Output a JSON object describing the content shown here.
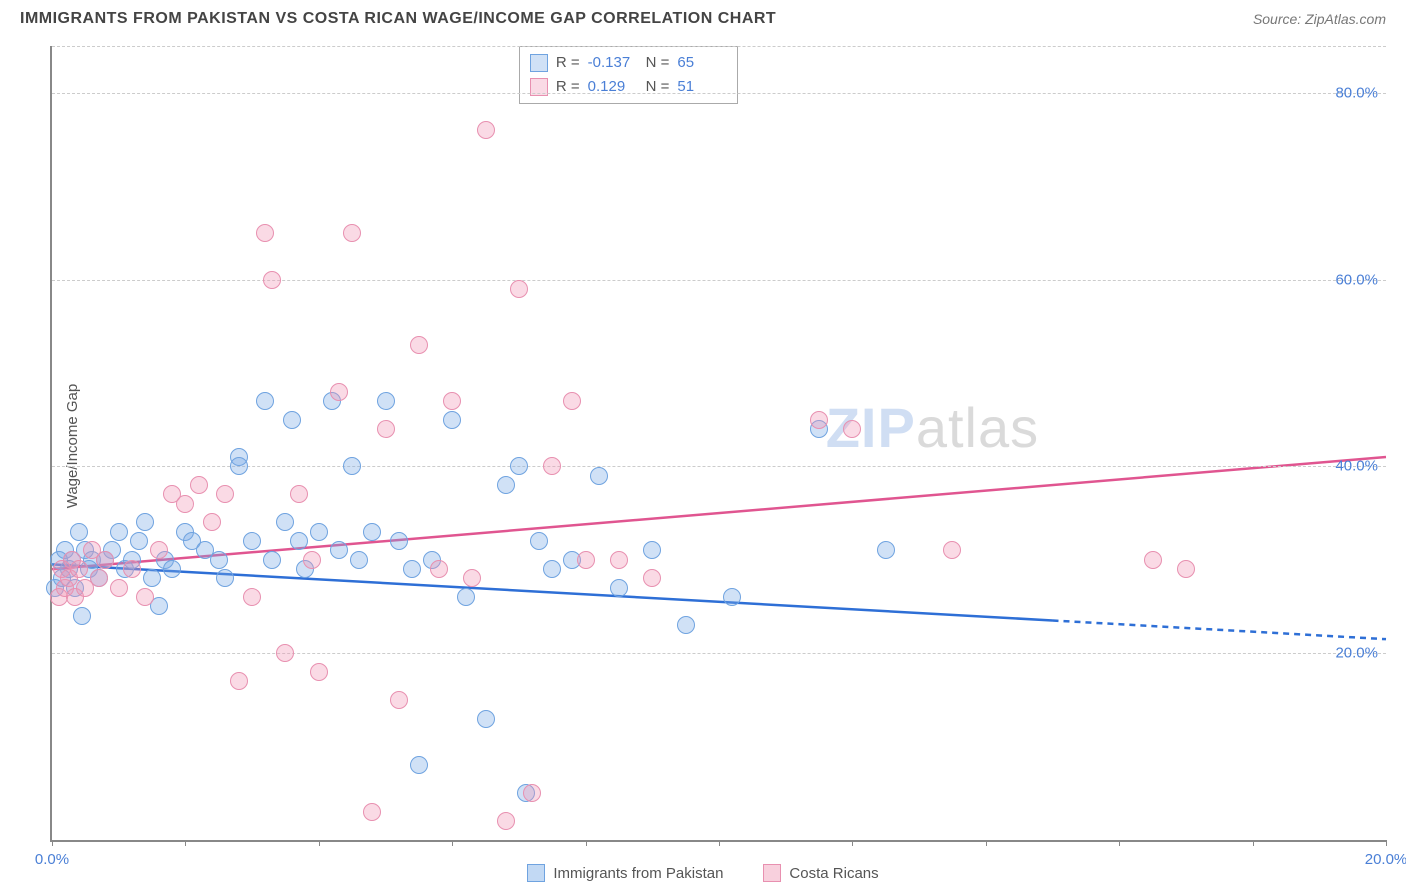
{
  "title": "IMMIGRANTS FROM PAKISTAN VS COSTA RICAN WAGE/INCOME GAP CORRELATION CHART",
  "source_label": "Source: ZipAtlas.com",
  "ylabel": "Wage/Income Gap",
  "watermark": {
    "part1": "ZIP",
    "part2": "atlas"
  },
  "chart": {
    "type": "scatter",
    "background_color": "#ffffff",
    "grid_color": "#cccccc",
    "axis_color": "#888888",
    "tick_label_color": "#4a7fd6",
    "xlim": [
      0,
      20
    ],
    "ylim": [
      0,
      85
    ],
    "xtick_positions": [
      0,
      2,
      4,
      6,
      8,
      10,
      12,
      14,
      16,
      18,
      20
    ],
    "xtick_labels": {
      "0": "0.0%",
      "20": "20.0%"
    },
    "ytick_positions": [
      20,
      40,
      60,
      80
    ],
    "ytick_labels": {
      "20": "20.0%",
      "40": "40.0%",
      "60": "60.0%",
      "80": "80.0%"
    },
    "marker_radius": 9,
    "marker_stroke_width": 1.5,
    "series": [
      {
        "key": "pakistan",
        "label": "Immigrants from Pakistan",
        "fill": "rgba(120,170,230,0.35)",
        "stroke": "#6fa3e0",
        "trend_color": "#2e6fd6",
        "trend_width": 2.5,
        "trend": {
          "x1": 0,
          "y1": 29.5,
          "x2": 15,
          "y2": 23.5,
          "dashed_beyond": 15,
          "x3": 20,
          "y3": 21.5
        },
        "R": "-0.137",
        "N": "65",
        "points": [
          [
            0.05,
            27
          ],
          [
            0.1,
            30
          ],
          [
            0.15,
            28
          ],
          [
            0.2,
            31
          ],
          [
            0.25,
            29
          ],
          [
            0.3,
            30
          ],
          [
            0.35,
            27
          ],
          [
            0.4,
            33
          ],
          [
            0.45,
            24
          ],
          [
            0.5,
            31
          ],
          [
            0.55,
            29
          ],
          [
            0.6,
            30
          ],
          [
            0.7,
            28
          ],
          [
            0.8,
            30
          ],
          [
            0.9,
            31
          ],
          [
            1.0,
            33
          ],
          [
            1.1,
            29
          ],
          [
            1.2,
            30
          ],
          [
            1.3,
            32
          ],
          [
            1.4,
            34
          ],
          [
            1.5,
            28
          ],
          [
            1.6,
            25
          ],
          [
            1.7,
            30
          ],
          [
            1.8,
            29
          ],
          [
            2.0,
            33
          ],
          [
            2.1,
            32
          ],
          [
            2.3,
            31
          ],
          [
            2.5,
            30
          ],
          [
            2.6,
            28
          ],
          [
            2.8,
            41
          ],
          [
            2.8,
            40
          ],
          [
            3.0,
            32
          ],
          [
            3.2,
            47
          ],
          [
            3.3,
            30
          ],
          [
            3.5,
            34
          ],
          [
            3.6,
            45
          ],
          [
            3.7,
            32
          ],
          [
            3.8,
            29
          ],
          [
            4.0,
            33
          ],
          [
            4.2,
            47
          ],
          [
            4.3,
            31
          ],
          [
            4.5,
            40
          ],
          [
            4.6,
            30
          ],
          [
            4.8,
            33
          ],
          [
            5.0,
            47
          ],
          [
            5.2,
            32
          ],
          [
            5.4,
            29
          ],
          [
            5.5,
            8
          ],
          [
            5.7,
            30
          ],
          [
            6.0,
            45
          ],
          [
            6.2,
            26
          ],
          [
            6.5,
            13
          ],
          [
            6.8,
            38
          ],
          [
            7.0,
            40
          ],
          [
            7.1,
            5
          ],
          [
            7.3,
            32
          ],
          [
            7.5,
            29
          ],
          [
            7.8,
            30
          ],
          [
            8.2,
            39
          ],
          [
            8.5,
            27
          ],
          [
            9.0,
            31
          ],
          [
            9.5,
            23
          ],
          [
            10.2,
            26
          ],
          [
            11.5,
            44
          ],
          [
            12.5,
            31
          ]
        ]
      },
      {
        "key": "costarican",
        "label": "Costa Ricans",
        "fill": "rgba(240,150,180,0.35)",
        "stroke": "#e890b0",
        "trend_color": "#e05590",
        "trend_width": 2.5,
        "trend": {
          "x1": 0,
          "y1": 29,
          "x2": 20,
          "y2": 41,
          "dashed_beyond": 20,
          "x3": 20,
          "y3": 41
        },
        "R": "0.129",
        "N": "51",
        "points": [
          [
            0.1,
            26
          ],
          [
            0.15,
            29
          ],
          [
            0.2,
            27
          ],
          [
            0.25,
            28
          ],
          [
            0.3,
            30
          ],
          [
            0.35,
            26
          ],
          [
            0.4,
            29
          ],
          [
            0.5,
            27
          ],
          [
            0.6,
            31
          ],
          [
            0.7,
            28
          ],
          [
            0.8,
            30
          ],
          [
            1.0,
            27
          ],
          [
            1.2,
            29
          ],
          [
            1.4,
            26
          ],
          [
            1.6,
            31
          ],
          [
            1.8,
            37
          ],
          [
            2.0,
            36
          ],
          [
            2.2,
            38
          ],
          [
            2.4,
            34
          ],
          [
            2.6,
            37
          ],
          [
            2.8,
            17
          ],
          [
            3.0,
            26
          ],
          [
            3.2,
            65
          ],
          [
            3.3,
            60
          ],
          [
            3.5,
            20
          ],
          [
            3.7,
            37
          ],
          [
            3.9,
            30
          ],
          [
            4.0,
            18
          ],
          [
            4.3,
            48
          ],
          [
            4.5,
            65
          ],
          [
            4.8,
            3
          ],
          [
            5.0,
            44
          ],
          [
            5.2,
            15
          ],
          [
            5.5,
            53
          ],
          [
            5.8,
            29
          ],
          [
            6.0,
            47
          ],
          [
            6.3,
            28
          ],
          [
            6.5,
            76
          ],
          [
            6.8,
            2
          ],
          [
            7.0,
            59
          ],
          [
            7.2,
            5
          ],
          [
            7.5,
            40
          ],
          [
            7.8,
            47
          ],
          [
            8.0,
            30
          ],
          [
            8.5,
            30
          ],
          [
            9.0,
            28
          ],
          [
            11.5,
            45
          ],
          [
            12.0,
            44
          ],
          [
            13.5,
            31
          ],
          [
            16.5,
            30
          ],
          [
            17.0,
            29
          ]
        ]
      }
    ]
  },
  "legend_bottom": [
    {
      "label": "Immigrants from Pakistan",
      "fill": "rgba(120,170,230,0.45)",
      "stroke": "#6fa3e0"
    },
    {
      "label": "Costa Ricans",
      "fill": "rgba(240,150,180,0.45)",
      "stroke": "#e890b0"
    }
  ]
}
